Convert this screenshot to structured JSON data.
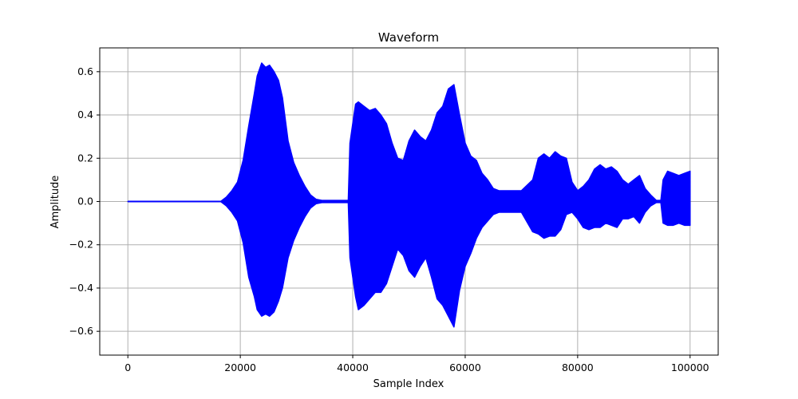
{
  "chart_data": {
    "type": "line",
    "title": "Waveform",
    "xlabel": "Sample Index",
    "ylabel": "Amplitude",
    "xlim": [
      -5000,
      105000
    ],
    "ylim": [
      -0.71,
      0.71
    ],
    "grid": true,
    "line_color": "#0000ff",
    "x_ticks": [
      0,
      20000,
      40000,
      60000,
      80000,
      100000
    ],
    "x_tick_labels": [
      "0",
      "20000",
      "40000",
      "60000",
      "80000",
      "100000"
    ],
    "y_ticks": [
      -0.6,
      -0.4,
      -0.2,
      0.0,
      0.2,
      0.4,
      0.6
    ],
    "y_tick_labels": [
      "−0.6",
      "−0.4",
      "−0.2",
      "0.0",
      "0.2",
      "0.4",
      "0.6"
    ],
    "envelope": {
      "x": [
        0,
        16500,
        17500,
        18500,
        19500,
        20500,
        21500,
        22500,
        23000,
        23800,
        24500,
        25200,
        26000,
        26800,
        27500,
        28500,
        29500,
        30500,
        31500,
        32500,
        33500,
        34500,
        39200,
        39500,
        40500,
        41000,
        42000,
        43000,
        44000,
        45000,
        46000,
        47000,
        48000,
        49000,
        50000,
        51000,
        52000,
        53000,
        54000,
        55000,
        56000,
        57000,
        58000,
        59000,
        60000,
        61000,
        62000,
        63000,
        64000,
        65000,
        66000,
        67000,
        68000,
        70000,
        72000,
        73000,
        74000,
        75000,
        76000,
        77000,
        78000,
        79000,
        80000,
        81000,
        82000,
        83000,
        84000,
        85000,
        86000,
        87000,
        88000,
        89000,
        90000,
        91000,
        92000,
        93000,
        94000,
        94800,
        95200,
        96000,
        97000,
        98000,
        99000,
        100000
      ],
      "upper": [
        0,
        0,
        0.02,
        0.05,
        0.09,
        0.19,
        0.35,
        0.5,
        0.58,
        0.64,
        0.62,
        0.63,
        0.6,
        0.56,
        0.48,
        0.28,
        0.18,
        0.12,
        0.07,
        0.03,
        0.01,
        0.005,
        0.005,
        0.27,
        0.45,
        0.46,
        0.44,
        0.42,
        0.43,
        0.4,
        0.36,
        0.27,
        0.2,
        0.19,
        0.28,
        0.33,
        0.3,
        0.28,
        0.33,
        0.41,
        0.44,
        0.52,
        0.54,
        0.4,
        0.27,
        0.21,
        0.19,
        0.13,
        0.1,
        0.06,
        0.05,
        0.05,
        0.05,
        0.05,
        0.1,
        0.2,
        0.22,
        0.2,
        0.23,
        0.21,
        0.2,
        0.09,
        0.05,
        0.07,
        0.1,
        0.15,
        0.17,
        0.15,
        0.16,
        0.14,
        0.1,
        0.08,
        0.1,
        0.12,
        0.06,
        0.03,
        0.005,
        0.005,
        0.1,
        0.14,
        0.13,
        0.12,
        0.13,
        0.14
      ],
      "lower": [
        0,
        0,
        -0.02,
        -0.05,
        -0.09,
        -0.19,
        -0.35,
        -0.44,
        -0.5,
        -0.53,
        -0.52,
        -0.53,
        -0.51,
        -0.46,
        -0.4,
        -0.26,
        -0.18,
        -0.12,
        -0.07,
        -0.03,
        -0.01,
        -0.005,
        -0.005,
        -0.26,
        -0.44,
        -0.5,
        -0.48,
        -0.45,
        -0.42,
        -0.42,
        -0.38,
        -0.3,
        -0.22,
        -0.25,
        -0.32,
        -0.35,
        -0.3,
        -0.26,
        -0.35,
        -0.45,
        -0.48,
        -0.53,
        -0.58,
        -0.41,
        -0.3,
        -0.24,
        -0.17,
        -0.12,
        -0.09,
        -0.06,
        -0.05,
        -0.05,
        -0.05,
        -0.05,
        -0.14,
        -0.15,
        -0.17,
        -0.16,
        -0.16,
        -0.13,
        -0.06,
        -0.05,
        -0.08,
        -0.12,
        -0.13,
        -0.12,
        -0.12,
        -0.1,
        -0.11,
        -0.12,
        -0.08,
        -0.08,
        -0.07,
        -0.1,
        -0.05,
        -0.02,
        -0.005,
        -0.005,
        -0.1,
        -0.11,
        -0.11,
        -0.1,
        -0.11,
        -0.11
      ]
    }
  }
}
